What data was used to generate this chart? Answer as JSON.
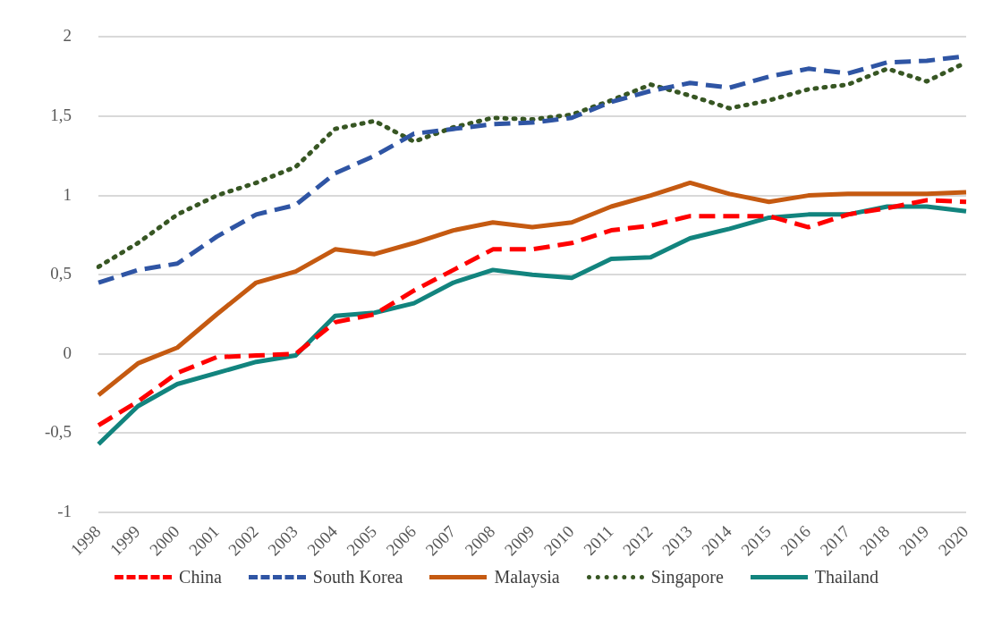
{
  "chart_data": {
    "type": "line",
    "categories": [
      "1998",
      "1999",
      "2000",
      "2001",
      "2002",
      "2003",
      "2004",
      "2005",
      "2006",
      "2007",
      "2008",
      "2009",
      "2010",
      "2011",
      "2012",
      "2013",
      "2014",
      "2015",
      "2016",
      "2017",
      "2018",
      "2019",
      "2020"
    ],
    "ylim": [
      -1,
      2
    ],
    "yticks": [
      {
        "value": -1,
        "label": "-1"
      },
      {
        "value": -0.5,
        "label": "-0,5"
      },
      {
        "value": 0,
        "label": "0"
      },
      {
        "value": 0.5,
        "label": "0,5"
      },
      {
        "value": 1,
        "label": "1"
      },
      {
        "value": 1.5,
        "label": "1,5"
      },
      {
        "value": 2,
        "label": "2"
      }
    ],
    "grid": "y",
    "legend": "bottom",
    "marker": "none",
    "series": [
      {
        "name": "China",
        "color": "#ff0000",
        "line_style": "dashed",
        "values": [
          -0.45,
          -0.3,
          -0.12,
          -0.02,
          -0.01,
          0.0,
          0.2,
          0.25,
          0.4,
          0.53,
          0.66,
          0.66,
          0.7,
          0.78,
          0.81,
          0.87,
          0.87,
          0.87,
          0.8,
          0.88,
          0.92,
          0.97,
          0.96
        ]
      },
      {
        "name": "South Korea",
        "color": "#2f55a4",
        "line_style": "dashed",
        "values": [
          0.45,
          0.53,
          0.57,
          0.74,
          0.88,
          0.94,
          1.14,
          1.25,
          1.39,
          1.42,
          1.45,
          1.46,
          1.49,
          1.59,
          1.66,
          1.71,
          1.68,
          1.75,
          1.8,
          1.77,
          1.84,
          1.85,
          1.88
        ]
      },
      {
        "name": "Malaysia",
        "color": "#c55a11",
        "line_style": "solid",
        "values": [
          -0.26,
          -0.06,
          0.04,
          0.25,
          0.45,
          0.52,
          0.66,
          0.63,
          0.7,
          0.78,
          0.83,
          0.8,
          0.83,
          0.93,
          1.0,
          1.08,
          1.01,
          0.96,
          1.0,
          1.01,
          1.01,
          1.01,
          1.02
        ]
      },
      {
        "name": "Singapore",
        "color": "#375623",
        "line_style": "dotted",
        "values": [
          0.55,
          0.7,
          0.88,
          1.0,
          1.08,
          1.18,
          1.42,
          1.47,
          1.34,
          1.43,
          1.49,
          1.48,
          1.51,
          1.6,
          1.7,
          1.63,
          1.55,
          1.6,
          1.67,
          1.7,
          1.8,
          1.72,
          1.84
        ]
      },
      {
        "name": "Thailand",
        "color": "#12847e",
        "line_style": "solid",
        "values": [
          -0.57,
          -0.33,
          -0.19,
          -0.12,
          -0.05,
          -0.01,
          0.24,
          0.26,
          0.32,
          0.45,
          0.53,
          0.5,
          0.48,
          0.6,
          0.61,
          0.73,
          0.79,
          0.86,
          0.88,
          0.88,
          0.93,
          0.93,
          0.9
        ]
      }
    ]
  }
}
